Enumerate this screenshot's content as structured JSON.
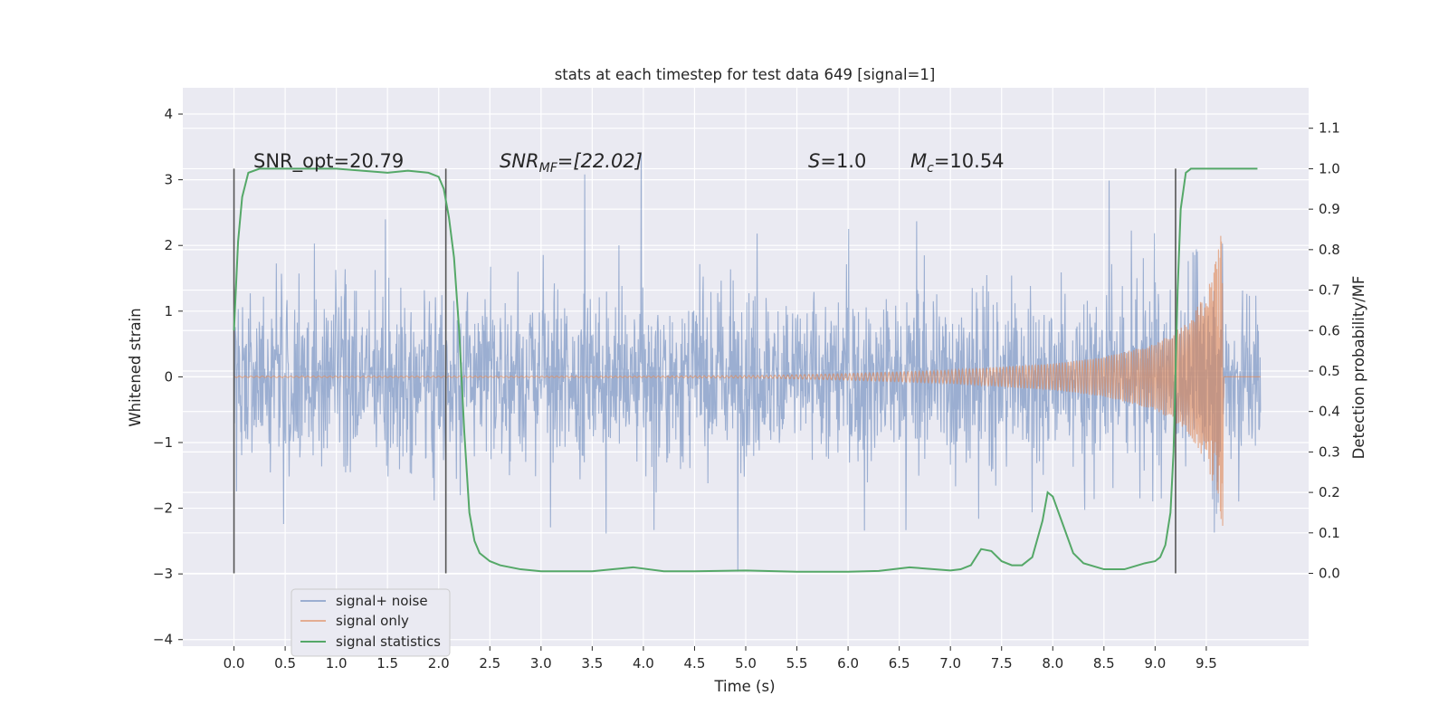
{
  "chart_data": {
    "type": "line",
    "title": "stats at each timestep for test data 649 [signal=1]",
    "xlabel": "Time (s)",
    "ylabel": "Whitened strain",
    "y2label": "Detection probability/MF",
    "xlim": [
      -0.5,
      10.5
    ],
    "ylim": [
      -4.1,
      4.4
    ],
    "y2lim": [
      -0.18,
      1.2
    ],
    "xticks": [
      "0.0",
      "0.5",
      "1.0",
      "1.5",
      "2.0",
      "2.5",
      "3.0",
      "3.5",
      "4.0",
      "4.5",
      "5.0",
      "5.5",
      "6.0",
      "6.5",
      "7.0",
      "7.5",
      "8.0",
      "8.5",
      "9.0",
      "9.5"
    ],
    "yticks": [
      "4",
      "3",
      "2",
      "1",
      "0",
      "−1",
      "−2",
      "−3",
      "−4"
    ],
    "y2ticks": [
      "1.1",
      "1.0",
      "0.9",
      "0.8",
      "0.7",
      "0.6",
      "0.5",
      "0.4",
      "0.3",
      "0.2",
      "0.1",
      "0.0"
    ],
    "grid": true,
    "legend_position": "lower-left",
    "colors": {
      "noise": "#4c72b0",
      "signal": "#dd8452",
      "stats": "#55a868",
      "background": "#eaeaf2",
      "vline": "#555555"
    },
    "annotations": {
      "snr_opt": "SNR_opt=20.79",
      "snr_mf_pre": "SNR",
      "snr_mf_sub": "MF",
      "snr_mf_post": "=[22.02]",
      "s_label": "S",
      "s_value": "=1.0",
      "mc_label": "M",
      "mc_sub": "c",
      "mc_value": "=10.54"
    },
    "event_lines_x": [
      0.0,
      2.07,
      9.2
    ],
    "series": [
      {
        "name": "signal+ noise",
        "note": "whitened strain, dense noise roughly within ±1.4 with peaks to about ±3; ends near 10.0 s",
        "x_range": [
          0.0,
          10.03
        ],
        "band": 1.4,
        "peak": 3.0
      },
      {
        "name": "signal only",
        "amplitude_points": [
          [
            0.0,
            0.01
          ],
          [
            4.0,
            0.01
          ],
          [
            5.2,
            0.02
          ],
          [
            6.0,
            0.05
          ],
          [
            7.0,
            0.1
          ],
          [
            8.0,
            0.2
          ],
          [
            8.5,
            0.3
          ],
          [
            9.0,
            0.5
          ],
          [
            9.3,
            0.8
          ],
          [
            9.5,
            1.3
          ],
          [
            9.6,
            1.8
          ],
          [
            9.66,
            2.4
          ],
          [
            9.68,
            0.0
          ],
          [
            10.03,
            0.0
          ]
        ]
      },
      {
        "name": "signal statistics",
        "x": [
          0.0,
          0.04,
          0.08,
          0.14,
          0.25,
          0.5,
          1.0,
          1.5,
          1.7,
          1.9,
          2.0,
          2.05,
          2.1,
          2.15,
          2.2,
          2.25,
          2.3,
          2.35,
          2.4,
          2.5,
          2.6,
          2.8,
          3.0,
          3.5,
          3.7,
          3.9,
          4.2,
          4.5,
          5.0,
          5.5,
          6.0,
          6.3,
          6.6,
          7.0,
          7.1,
          7.2,
          7.3,
          7.4,
          7.5,
          7.6,
          7.7,
          7.8,
          7.9,
          7.95,
          8.0,
          8.1,
          8.2,
          8.3,
          8.5,
          8.7,
          8.9,
          9.0,
          9.05,
          9.1,
          9.15,
          9.18,
          9.2,
          9.22,
          9.25,
          9.3,
          9.35,
          9.45,
          9.6,
          9.8,
          10.0
        ],
        "y": [
          0.6,
          0.82,
          0.93,
          0.99,
          1.0,
          1.0,
          1.0,
          0.99,
          0.995,
          0.99,
          0.98,
          0.95,
          0.88,
          0.78,
          0.6,
          0.35,
          0.15,
          0.08,
          0.05,
          0.03,
          0.02,
          0.01,
          0.005,
          0.005,
          0.01,
          0.015,
          0.005,
          0.005,
          0.007,
          0.004,
          0.004,
          0.006,
          0.015,
          0.007,
          0.01,
          0.02,
          0.06,
          0.055,
          0.03,
          0.02,
          0.02,
          0.04,
          0.13,
          0.2,
          0.19,
          0.12,
          0.05,
          0.025,
          0.01,
          0.01,
          0.025,
          0.03,
          0.04,
          0.07,
          0.15,
          0.3,
          0.5,
          0.7,
          0.9,
          0.99,
          1.0,
          1.0,
          1.0,
          1.0,
          1.0
        ]
      }
    ]
  }
}
